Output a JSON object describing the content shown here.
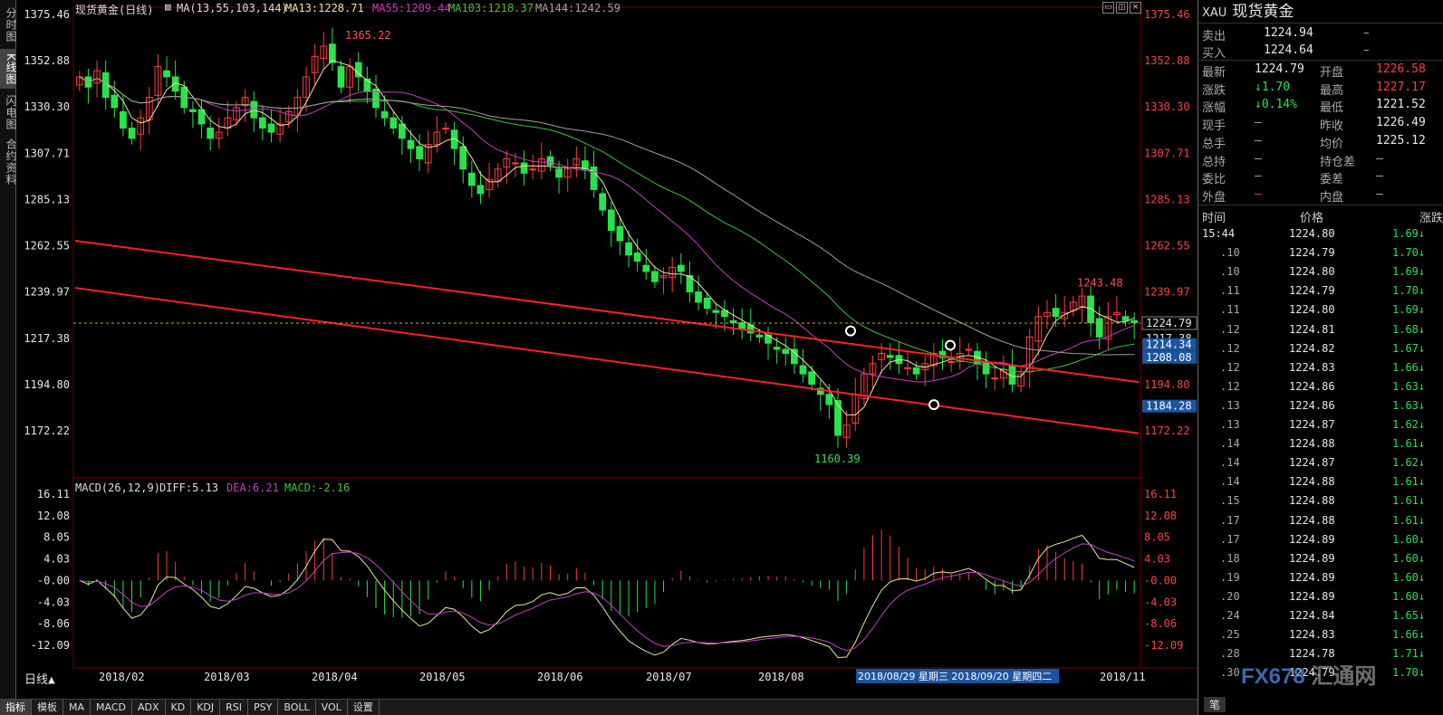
{
  "nav_tabs": [
    {
      "label": "分时图"
    },
    {
      "label": "K线图"
    },
    {
      "label": "闪电图"
    },
    {
      "label": "合约资料"
    }
  ],
  "legend": {
    "title": "现货黄金(日线)",
    "ma_label": "MA(13,55,103,144)",
    "ma13": "MA13:1228.71",
    "ma55": "MA55:1209.44",
    "ma103": "MA103:1218.37",
    "ma144": "MA144:1242.59",
    "macd_label": "MACD(26,12,9)",
    "diff": "DIFF:5.13",
    "dea": "DEA:6.21",
    "macd": "MACD:-2.16"
  },
  "price_axis": [
    "1375.46",
    "1352.88",
    "1330.30",
    "1307.71",
    "1285.13",
    "1262.55",
    "1239.97",
    "1217.38",
    "1194.80",
    "1172.22"
  ],
  "macd_axis": [
    "16.11",
    "12.08",
    "8.05",
    "4.03",
    "-0.00",
    "-4.03",
    "-8.06",
    "-12.09"
  ],
  "date_labels": [
    "2018/02",
    "2018/03",
    "2018/04",
    "2018/05",
    "2018/06",
    "2018/07",
    "2018/08",
    "2018/11"
  ],
  "date_highlight": "2018/08/29 星期三 2018/09/20 星期四二",
  "period_label": "日线▲",
  "annotations": {
    "high": "1365.22",
    "low": "1160.39",
    "recent_high": "1243.48",
    "last_price": "1224.79",
    "box_1214": "1214.34",
    "box_1208": "1208.08",
    "box_1184": "1184.28",
    "ma_right": "1217.38"
  },
  "toolbar": [
    "指标",
    "模板",
    "MA",
    "MACD",
    "ADX",
    "KD",
    "KDJ",
    "RSI",
    "PSY",
    "BOLL",
    "VOL",
    "设置"
  ],
  "quote": {
    "symbol": "XAU",
    "name": "现货黄金",
    "sell_label": "卖出",
    "sell": "1224.94",
    "sell_vol": "–",
    "buy_label": "买入",
    "buy": "1224.64",
    "buy_vol": "–",
    "fields": [
      {
        "l1": "最新",
        "v1": "1224.79",
        "l2": "开盘",
        "v2": "1226.58",
        "c1": "white",
        "c2": "red"
      },
      {
        "l1": "涨跌",
        "v1": "↓1.70",
        "l2": "最高",
        "v2": "1227.17",
        "c1": "green",
        "c2": "red"
      },
      {
        "l1": "涨幅",
        "v1": "↓0.14%",
        "l2": "最低",
        "v2": "1221.52",
        "c1": "green",
        "c2": "white"
      },
      {
        "l1": "现手",
        "v1": "–",
        "l2": "昨收",
        "v2": "1226.49",
        "c1": "dim",
        "c2": "white"
      },
      {
        "l1": "总手",
        "v1": "–",
        "l2": "均价",
        "v2": "1225.12",
        "c1": "dim",
        "c2": "white"
      },
      {
        "l1": "总持",
        "v1": "–",
        "l2": "持仓差",
        "v2": "–",
        "c1": "dim",
        "c2": "dim"
      },
      {
        "l1": "委比",
        "v1": "–",
        "l2": "委差",
        "v2": "–",
        "c1": "dim",
        "c2": "dim"
      },
      {
        "l1": "外盘",
        "v1": "–",
        "l2": "内盘",
        "v2": "–",
        "c1": "red",
        "c2": "dim"
      }
    ],
    "tick_headers": {
      "time": "时间",
      "price": "价格",
      "change": "涨跌"
    },
    "ticks": [
      {
        "t": "15:44",
        "p": "1224.80",
        "c": "1.69↓"
      },
      {
        "t": ".10",
        "p": "1224.79",
        "c": "1.70↓"
      },
      {
        "t": ".10",
        "p": "1224.80",
        "c": "1.69↓"
      },
      {
        "t": ".11",
        "p": "1224.79",
        "c": "1.70↓"
      },
      {
        "t": ".11",
        "p": "1224.80",
        "c": "1.69↓"
      },
      {
        "t": ".12",
        "p": "1224.81",
        "c": "1.68↓"
      },
      {
        "t": ".12",
        "p": "1224.82",
        "c": "1.67↓"
      },
      {
        "t": ".12",
        "p": "1224.83",
        "c": "1.66↓"
      },
      {
        "t": ".12",
        "p": "1224.86",
        "c": "1.63↓"
      },
      {
        "t": ".13",
        "p": "1224.86",
        "c": "1.63↓"
      },
      {
        "t": ".13",
        "p": "1224.87",
        "c": "1.62↓"
      },
      {
        "t": ".14",
        "p": "1224.88",
        "c": "1.61↓"
      },
      {
        "t": ".14",
        "p": "1224.87",
        "c": "1.62↓"
      },
      {
        "t": ".14",
        "p": "1224.88",
        "c": "1.61↓"
      },
      {
        "t": ".15",
        "p": "1224.88",
        "c": "1.61↓"
      },
      {
        "t": ".17",
        "p": "1224.88",
        "c": "1.61↓"
      },
      {
        "t": ".17",
        "p": "1224.89",
        "c": "1.60↓"
      },
      {
        "t": ".18",
        "p": "1224.89",
        "c": "1.60↓"
      },
      {
        "t": ".19",
        "p": "1224.89",
        "c": "1.60↓"
      },
      {
        "t": ".20",
        "p": "1224.89",
        "c": "1.60↓"
      },
      {
        "t": ".24",
        "p": "1224.84",
        "c": "1.65↓"
      },
      {
        "t": ".25",
        "p": "1224.83",
        "c": "1.66↓"
      },
      {
        "t": ".28",
        "p": "1224.78",
        "c": "1.71↓"
      },
      {
        "t": ".30",
        "p": "1224.79",
        "c": "1.70↓"
      }
    ],
    "bottom_tab": "笔"
  },
  "watermark": {
    "a": "FX678",
    "b": "汇通网"
  },
  "colors": {
    "up": "#ff3c3c",
    "down": "#27e44a",
    "ma13": "#e8e8a0",
    "ma55": "#c040c0",
    "ma103": "#40c040",
    "ma144": "#a0a0a0",
    "trend": "#ff2020"
  },
  "chart_data": {
    "type": "candlestick",
    "price_range": [
      1160.39,
      1375.46
    ],
    "macd_range": [
      -12.09,
      16.11
    ],
    "closes": [
      1345,
      1340,
      1348,
      1335,
      1330,
      1320,
      1315,
      1325,
      1335,
      1350,
      1345,
      1338,
      1330,
      1328,
      1322,
      1315,
      1318,
      1325,
      1330,
      1335,
      1325,
      1320,
      1318,
      1322,
      1328,
      1335,
      1345,
      1355,
      1360,
      1352,
      1340,
      1350,
      1345,
      1338,
      1330,
      1325,
      1320,
      1315,
      1310,
      1305,
      1312,
      1318,
      1320,
      1310,
      1300,
      1292,
      1288,
      1295,
      1300,
      1305,
      1303,
      1298,
      1300,
      1305,
      1302,
      1296,
      1300,
      1305,
      1300,
      1290,
      1280,
      1270,
      1265,
      1258,
      1255,
      1250,
      1245,
      1248,
      1252,
      1250,
      1240,
      1235,
      1232,
      1230,
      1228,
      1225,
      1222,
      1220,
      1218,
      1215,
      1212,
      1210,
      1205,
      1200,
      1195,
      1190,
      1185,
      1170,
      1175,
      1190,
      1200,
      1205,
      1210,
      1208,
      1205,
      1203,
      1200,
      1205,
      1210,
      1208,
      1206,
      1210,
      1212,
      1205,
      1200,
      1198,
      1202,
      1195,
      1200,
      1218,
      1228,
      1230,
      1228,
      1230,
      1235,
      1238,
      1225,
      1218,
      1228,
      1230,
      1226,
      1225
    ]
  }
}
